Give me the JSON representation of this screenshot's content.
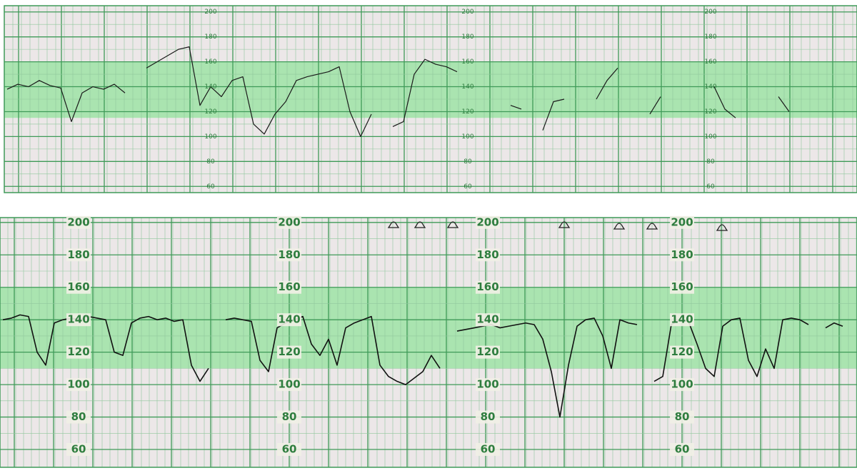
{
  "chart_data": [
    {
      "type": "line",
      "ylim": [
        55,
        205
      ],
      "yticks": [
        60,
        80,
        100,
        120,
        140,
        160,
        180,
        200
      ],
      "normal_band": [
        115,
        160
      ],
      "grid": true,
      "values": [
        138,
        142,
        140,
        145,
        141,
        139,
        112,
        135,
        140,
        138,
        142,
        135,
        null,
        155,
        160,
        165,
        170,
        172,
        125,
        140,
        132,
        145,
        148,
        110,
        102,
        118,
        128,
        145,
        148,
        150,
        152,
        156,
        120,
        100,
        118,
        null,
        108,
        112,
        150,
        162,
        158,
        156,
        152,
        null,
        null,
        null,
        null,
        125,
        122,
        null,
        105,
        128,
        130,
        null,
        null,
        130,
        145,
        155,
        null,
        null,
        118,
        132,
        null,
        null,
        null,
        null,
        140,
        122,
        115,
        null,
        null,
        null,
        132,
        120,
        null,
        null,
        null,
        null,
        null,
        null
      ],
      "color": "#1a1a1a"
    },
    {
      "type": "line",
      "ylim": [
        49,
        203
      ],
      "yticks": [
        60,
        80,
        100,
        120,
        140,
        160,
        180,
        200
      ],
      "normal_band": [
        110,
        160
      ],
      "grid": true,
      "values": [
        140,
        141,
        143,
        142,
        120,
        112,
        138,
        140,
        141,
        140,
        142,
        141,
        140,
        120,
        118,
        138,
        141,
        142,
        140,
        141,
        139,
        140,
        112,
        102,
        110,
        null,
        140,
        141,
        140,
        139,
        115,
        108,
        135,
        138,
        140,
        142,
        125,
        118,
        128,
        112,
        135,
        138,
        140,
        142,
        112,
        105,
        102,
        100,
        104,
        108,
        118,
        110,
        null,
        133,
        134,
        135,
        136,
        137,
        135,
        136,
        137,
        138,
        137,
        128,
        108,
        80,
        112,
        136,
        140,
        141,
        130,
        110,
        140,
        138,
        137,
        null,
        102,
        105,
        137,
        140,
        139,
        125,
        110,
        105,
        136,
        140,
        141,
        115,
        105,
        122,
        110,
        140,
        141,
        140,
        137,
        null,
        135,
        138,
        136,
        null
      ],
      "color": "#111111"
    }
  ]
}
